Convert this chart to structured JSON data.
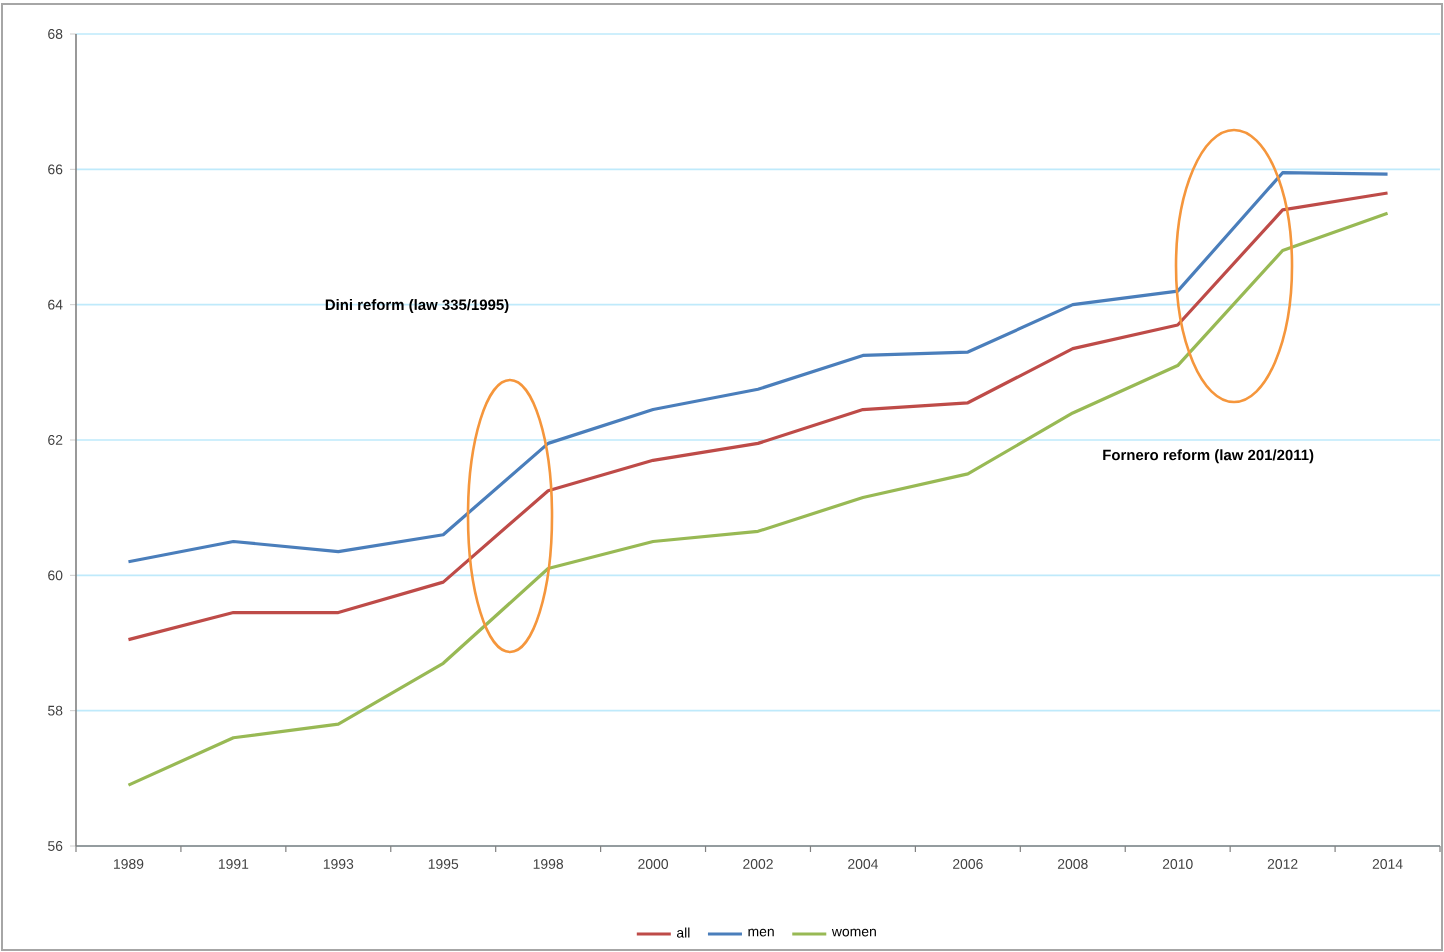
{
  "chart_data": {
    "type": "line",
    "categories": [
      "1989",
      "1991",
      "1993",
      "1995",
      "1998",
      "2000",
      "2002",
      "2004",
      "2006",
      "2008",
      "2010",
      "2012",
      "2014"
    ],
    "series": [
      {
        "name": "all",
        "color": "#be4b48",
        "values": [
          59.05,
          59.45,
          59.45,
          59.9,
          61.25,
          61.7,
          61.95,
          62.45,
          62.55,
          63.35,
          63.7,
          65.4,
          65.65
        ]
      },
      {
        "name": "men",
        "color": "#4a7ebb",
        "values": [
          60.2,
          60.5,
          60.35,
          60.6,
          61.95,
          62.45,
          62.75,
          63.25,
          63.3,
          64.0,
          64.2,
          65.95,
          65.93
        ]
      },
      {
        "name": "women",
        "color": "#98b954",
        "values": [
          56.9,
          57.6,
          57.8,
          58.7,
          60.1,
          60.5,
          60.65,
          61.15,
          61.5,
          62.4,
          63.1,
          64.8,
          65.35
        ]
      }
    ],
    "ylim": [
      56,
      68
    ],
    "yticks": [
      56,
      58,
      60,
      62,
      64,
      66,
      68
    ],
    "grid": "y",
    "legend": "bottom",
    "marker": "none",
    "line_style": "solid",
    "annotations": [
      "Dini reform (law 335/1995)",
      "Fornero reform (law 201/2011)"
    ]
  }
}
